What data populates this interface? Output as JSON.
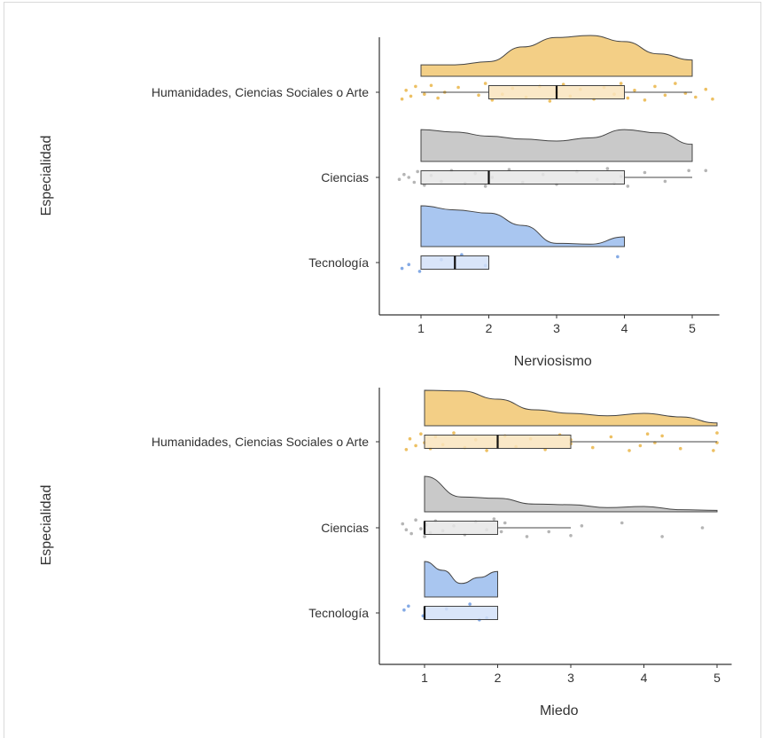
{
  "chart_data": [
    {
      "type": "raincloud",
      "xlabel": "Nerviosismo",
      "ylabel": "Especialidad",
      "xlim": [
        0.6,
        5.4
      ],
      "xticks": [
        1,
        2,
        3,
        4,
        5
      ],
      "categories": [
        "Humanidades, Ciencias Sociales o Arte",
        "Ciencias",
        "Tecnología"
      ],
      "colors": [
        "#f3cf86",
        "#c9c9c9",
        "#a9c6f0"
      ],
      "box_colors": [
        "#f9e4bd",
        "#e6e6e6",
        "#d2e1f8"
      ],
      "point_colors": [
        "#eab548",
        "#a8a8a8",
        "#6e9be0"
      ],
      "groups": [
        {
          "name": "Humanidades, Ciencias Sociales o Arte",
          "density_x": [
            1.0,
            1.5,
            2.0,
            2.5,
            3.0,
            3.5,
            4.0,
            4.5,
            5.0
          ],
          "density_y": [
            0.28,
            0.28,
            0.36,
            0.72,
            0.95,
            1.0,
            0.85,
            0.55,
            0.4
          ],
          "box": {
            "min": 1,
            "q1": 2,
            "median": 3,
            "q3": 4,
            "max": 5
          },
          "points": [
            [
              0.72,
              0.7
            ],
            [
              0.78,
              -0.2
            ],
            [
              0.85,
              0.4
            ],
            [
              0.92,
              -0.6
            ],
            [
              1.05,
              0.2
            ],
            [
              1.15,
              -0.7
            ],
            [
              1.25,
              0.6
            ],
            [
              1.35,
              0.0
            ],
            [
              1.55,
              -0.5
            ],
            [
              1.85,
              0.3
            ],
            [
              1.95,
              -0.9
            ],
            [
              2.05,
              0.8
            ],
            [
              2.2,
              0.2
            ],
            [
              2.35,
              -0.4
            ],
            [
              2.55,
              0.5
            ],
            [
              2.75,
              -0.6
            ],
            [
              2.9,
              0.9
            ],
            [
              3.0,
              0.0
            ],
            [
              3.1,
              -0.8
            ],
            [
              3.2,
              0.4
            ],
            [
              3.35,
              -0.3
            ],
            [
              3.55,
              0.7
            ],
            [
              3.7,
              -0.5
            ],
            [
              3.85,
              0.2
            ],
            [
              3.95,
              -0.9
            ],
            [
              4.05,
              0.6
            ],
            [
              4.15,
              -0.2
            ],
            [
              4.3,
              0.8
            ],
            [
              4.45,
              -0.6
            ],
            [
              4.6,
              0.3
            ],
            [
              4.75,
              -0.9
            ],
            [
              4.9,
              0.1
            ],
            [
              5.05,
              0.5
            ],
            [
              5.2,
              -0.3
            ],
            [
              5.3,
              0.7
            ]
          ]
        },
        {
          "name": "Ciencias",
          "density_x": [
            1.0,
            1.5,
            2.0,
            2.5,
            3.0,
            3.5,
            4.0,
            4.5,
            5.0
          ],
          "density_y": [
            0.78,
            0.72,
            0.62,
            0.55,
            0.5,
            0.58,
            0.78,
            0.7,
            0.42
          ],
          "box": {
            "min": 1,
            "q1": 1,
            "median": 2,
            "q3": 4,
            "max": 5
          },
          "points": [
            [
              0.68,
              0.2
            ],
            [
              0.75,
              -0.3
            ],
            [
              0.82,
              0.0
            ],
            [
              0.9,
              0.5
            ],
            [
              0.95,
              -0.6
            ],
            [
              1.05,
              0.8
            ],
            [
              1.15,
              -0.2
            ],
            [
              1.3,
              0.4
            ],
            [
              1.45,
              -0.7
            ],
            [
              1.65,
              0.6
            ],
            [
              1.8,
              -0.4
            ],
            [
              1.95,
              0.9
            ],
            [
              2.05,
              0.0
            ],
            [
              2.3,
              -0.8
            ],
            [
              2.5,
              0.5
            ],
            [
              2.8,
              -0.3
            ],
            [
              3.0,
              0.7
            ],
            [
              3.3,
              -0.6
            ],
            [
              3.6,
              0.2
            ],
            [
              3.75,
              -0.9
            ],
            [
              3.85,
              0.6
            ],
            [
              3.95,
              -0.1
            ],
            [
              4.05,
              0.9
            ],
            [
              4.3,
              -0.5
            ],
            [
              4.6,
              0.4
            ],
            [
              4.95,
              -0.7
            ],
            [
              5.2,
              -0.7
            ]
          ]
        },
        {
          "name": "Tecnología",
          "density_x": [
            1.0,
            1.5,
            2.0,
            2.5,
            3.0,
            3.5,
            4.0
          ],
          "density_y": [
            1.0,
            0.9,
            0.82,
            0.52,
            0.08,
            0.06,
            0.24
          ],
          "box": {
            "min": 1,
            "q1": 1,
            "median": 1.5,
            "q3": 2,
            "max": 2
          },
          "points": [
            [
              0.72,
              0.6
            ],
            [
              0.82,
              0.2
            ],
            [
              0.98,
              0.9
            ],
            [
              1.3,
              -0.3
            ],
            [
              1.6,
              -0.8
            ],
            [
              1.95,
              0.3
            ],
            [
              3.9,
              -0.6
            ]
          ]
        }
      ]
    },
    {
      "type": "raincloud",
      "xlabel": "Miedo",
      "ylabel": "Especialidad",
      "xlim": [
        0.6,
        5.2
      ],
      "xticks": [
        1,
        2,
        3,
        4,
        5
      ],
      "categories": [
        "Humanidades, Ciencias Sociales o Arte",
        "Ciencias",
        "Tecnología"
      ],
      "colors": [
        "#f3cf86",
        "#c9c9c9",
        "#a9c6f0"
      ],
      "box_colors": [
        "#f9e4bd",
        "#e6e6e6",
        "#d2e1f8"
      ],
      "point_colors": [
        "#eab548",
        "#a8a8a8",
        "#6e9be0"
      ],
      "groups": [
        {
          "name": "Humanidades, Ciencias Sociales o Arte",
          "density_x": [
            1.0,
            1.5,
            2.0,
            2.5,
            3.0,
            3.5,
            4.0,
            4.5,
            5.0
          ],
          "density_y": [
            1.0,
            0.98,
            0.75,
            0.45,
            0.35,
            0.28,
            0.35,
            0.25,
            0.08
          ],
          "box": {
            "min": 1,
            "q1": 1,
            "median": 2,
            "q3": 3,
            "max": 5
          },
          "points": [
            [
              0.75,
              0.8
            ],
            [
              0.8,
              -0.3
            ],
            [
              0.88,
              0.4
            ],
            [
              0.95,
              -0.8
            ],
            [
              1.0,
              0.1
            ],
            [
              1.08,
              0.7
            ],
            [
              1.15,
              -0.5
            ],
            [
              1.25,
              0.3
            ],
            [
              1.4,
              -0.9
            ],
            [
              1.55,
              0.6
            ],
            [
              1.7,
              -0.2
            ],
            [
              1.85,
              0.9
            ],
            [
              2.0,
              0.0
            ],
            [
              2.1,
              -0.6
            ],
            [
              2.25,
              0.5
            ],
            [
              2.45,
              -0.3
            ],
            [
              2.65,
              0.8
            ],
            [
              2.85,
              -0.7
            ],
            [
              3.0,
              0.2
            ],
            [
              3.0,
              -0.2
            ],
            [
              3.3,
              0.6
            ],
            [
              3.55,
              -0.5
            ],
            [
              3.8,
              0.9
            ],
            [
              3.95,
              0.4
            ],
            [
              4.05,
              -0.8
            ],
            [
              4.15,
              0.1
            ],
            [
              4.25,
              -0.6
            ],
            [
              4.5,
              0.7
            ],
            [
              4.95,
              0.9
            ],
            [
              5.0,
              0.1
            ],
            [
              5.0,
              -0.9
            ]
          ]
        },
        {
          "name": "Ciencias",
          "density_x": [
            1.0,
            1.5,
            2.0,
            2.5,
            3.0,
            3.5,
            4.0,
            4.5,
            5.0
          ],
          "density_y": [
            1.0,
            0.42,
            0.38,
            0.22,
            0.2,
            0.12,
            0.15,
            0.06,
            0.04
          ],
          "box": {
            "min": 1,
            "q1": 1,
            "median": 1,
            "q3": 2,
            "max": 3
          },
          "points": [
            [
              0.7,
              -0.4
            ],
            [
              0.75,
              0.2
            ],
            [
              0.82,
              0.6
            ],
            [
              0.88,
              -0.8
            ],
            [
              0.95,
              0.1
            ],
            [
              1.0,
              0.9
            ],
            [
              1.02,
              -0.3
            ],
            [
              1.08,
              0.5
            ],
            [
              1.15,
              -0.7
            ],
            [
              1.25,
              0.3
            ],
            [
              1.4,
              -0.2
            ],
            [
              1.55,
              0.7
            ],
            [
              1.7,
              -0.6
            ],
            [
              1.85,
              0.2
            ],
            [
              1.95,
              -0.9
            ],
            [
              2.05,
              0.4
            ],
            [
              2.1,
              -0.5
            ],
            [
              2.4,
              0.9
            ],
            [
              2.7,
              0.4
            ],
            [
              3.0,
              0.8
            ],
            [
              3.15,
              -0.2
            ],
            [
              3.7,
              -0.5
            ],
            [
              4.25,
              0.9
            ],
            [
              4.8,
              0.0
            ]
          ]
        },
        {
          "name": "Tecnología",
          "density_x": [
            1.0,
            1.25,
            1.5,
            1.75,
            2.0
          ],
          "density_y": [
            1.0,
            0.75,
            0.38,
            0.55,
            0.72
          ],
          "box": {
            "min": 1,
            "q1": 1,
            "median": 1,
            "q3": 2,
            "max": 2
          },
          "points": [
            [
              0.72,
              -0.3
            ],
            [
              0.78,
              -0.7
            ],
            [
              0.98,
              0.3
            ],
            [
              1.3,
              -0.4
            ],
            [
              1.62,
              -0.9
            ],
            [
              1.75,
              0.7
            ],
            [
              1.85,
              0.5
            ]
          ]
        }
      ]
    }
  ]
}
